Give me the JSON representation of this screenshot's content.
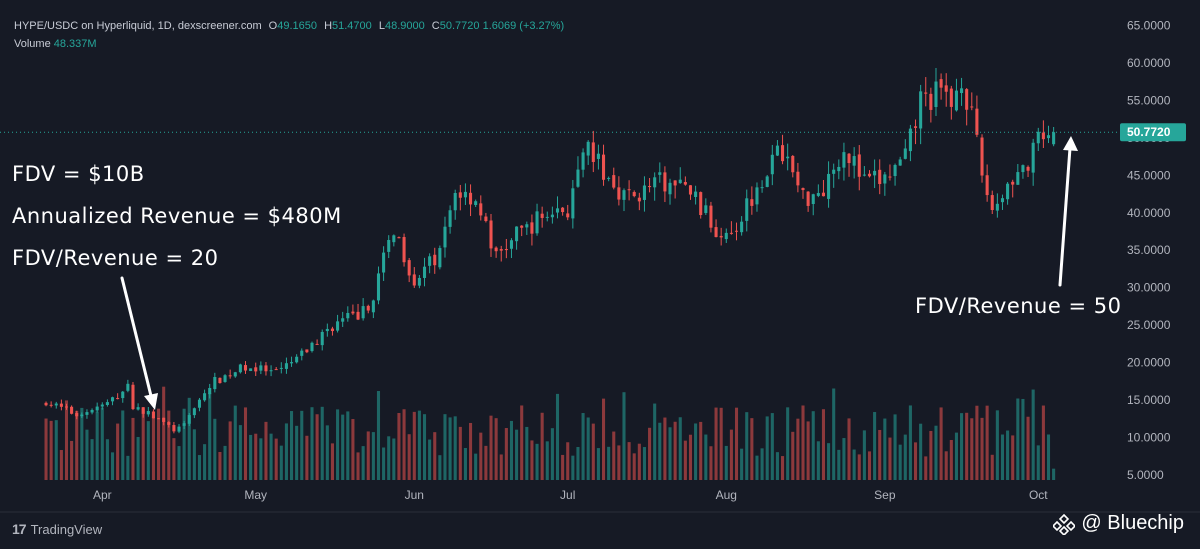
{
  "header": {
    "symbol": "HYPE/USDC on Hyperliquid, 1D, dexscreener.com",
    "open_label": "O",
    "open": "49.1650",
    "high_label": "H",
    "high": "51.4700",
    "low_label": "L",
    "low": "48.9000",
    "close_label": "C",
    "close": "50.7720",
    "change": "1.6069 (+3.27%)",
    "volume_label": "Volume",
    "volume": "48.337M"
  },
  "annotations": {
    "fdv": "FDV = $10B",
    "revenue": "Annualized Revenue = $480M",
    "ratio_left": "FDV/Revenue = 20",
    "ratio_right": "FDV/Revenue = 50"
  },
  "branding": {
    "platform": "TradingView",
    "watermark": "@ Bluechip"
  },
  "colors": {
    "up": "#26a69a",
    "down": "#ef5350",
    "background": "#161a25",
    "price_tag": "#26a69a"
  },
  "chart_data": {
    "type": "candlestick",
    "title": "HYPE/USDC on Hyperliquid, 1D, dexscreener.com",
    "price_axis_ticks": [
      "65.0000",
      "60.0000",
      "55.0000",
      "50.0000",
      "45.0000",
      "40.0000",
      "35.0000",
      "30.0000",
      "25.0000",
      "20.0000",
      "15.0000",
      "10.0000",
      "5.0000"
    ],
    "ylim": [
      4.3,
      66.3
    ],
    "current_price": "50.7720",
    "x_ticks": [
      {
        "label": "Apr",
        "day": 11
      },
      {
        "label": "May",
        "day": 41
      },
      {
        "label": "Jun",
        "day": 72
      },
      {
        "label": "Jul",
        "day": 102
      },
      {
        "label": "Aug",
        "day": 133
      },
      {
        "label": "Sep",
        "day": 164
      },
      {
        "label": "Oct",
        "day": 194
      }
    ],
    "x_range": [
      -9,
      209
    ],
    "price_path": [
      [
        0,
        14.8
      ],
      [
        6,
        13.0
      ],
      [
        12,
        14.5
      ],
      [
        16,
        16.7
      ],
      [
        17,
        14.2
      ],
      [
        21,
        12.8
      ],
      [
        25,
        11.0
      ],
      [
        27,
        11.5
      ],
      [
        29,
        14.2
      ],
      [
        33,
        17.5
      ],
      [
        39,
        19.5
      ],
      [
        45,
        18.5
      ],
      [
        50,
        21.0
      ],
      [
        56,
        25.0
      ],
      [
        63,
        27.0
      ],
      [
        68,
        38.0
      ],
      [
        72,
        31.0
      ],
      [
        77,
        34.5
      ],
      [
        80,
        43.0
      ],
      [
        84,
        42.0
      ],
      [
        88,
        34.0
      ],
      [
        92,
        37.0
      ],
      [
        98,
        40.0
      ],
      [
        102,
        40.5
      ],
      [
        106,
        48.5
      ],
      [
        110,
        44.5
      ],
      [
        114,
        42.0
      ],
      [
        120,
        44.0
      ],
      [
        126,
        43.0
      ],
      [
        131,
        37.5
      ],
      [
        135,
        38.5
      ],
      [
        140,
        45.0
      ],
      [
        144,
        48.5
      ],
      [
        148,
        42.0
      ],
      [
        152,
        43.5
      ],
      [
        156,
        49.0
      ],
      [
        160,
        44.0
      ],
      [
        164,
        44.5
      ],
      [
        168,
        47.0
      ],
      [
        171,
        55.0
      ],
      [
        175,
        56.0
      ],
      [
        177,
        54.5
      ],
      [
        179,
        58.5
      ],
      [
        181,
        52.5
      ],
      [
        183,
        45.0
      ],
      [
        185,
        40.5
      ],
      [
        189,
        45.0
      ],
      [
        192,
        46.0
      ],
      [
        194,
        49.5
      ],
      [
        196,
        49.2
      ],
      [
        197,
        50.77
      ]
    ],
    "volume_note": "Volume bars shown below price, colored by candle direction; volume scale not labeled"
  }
}
